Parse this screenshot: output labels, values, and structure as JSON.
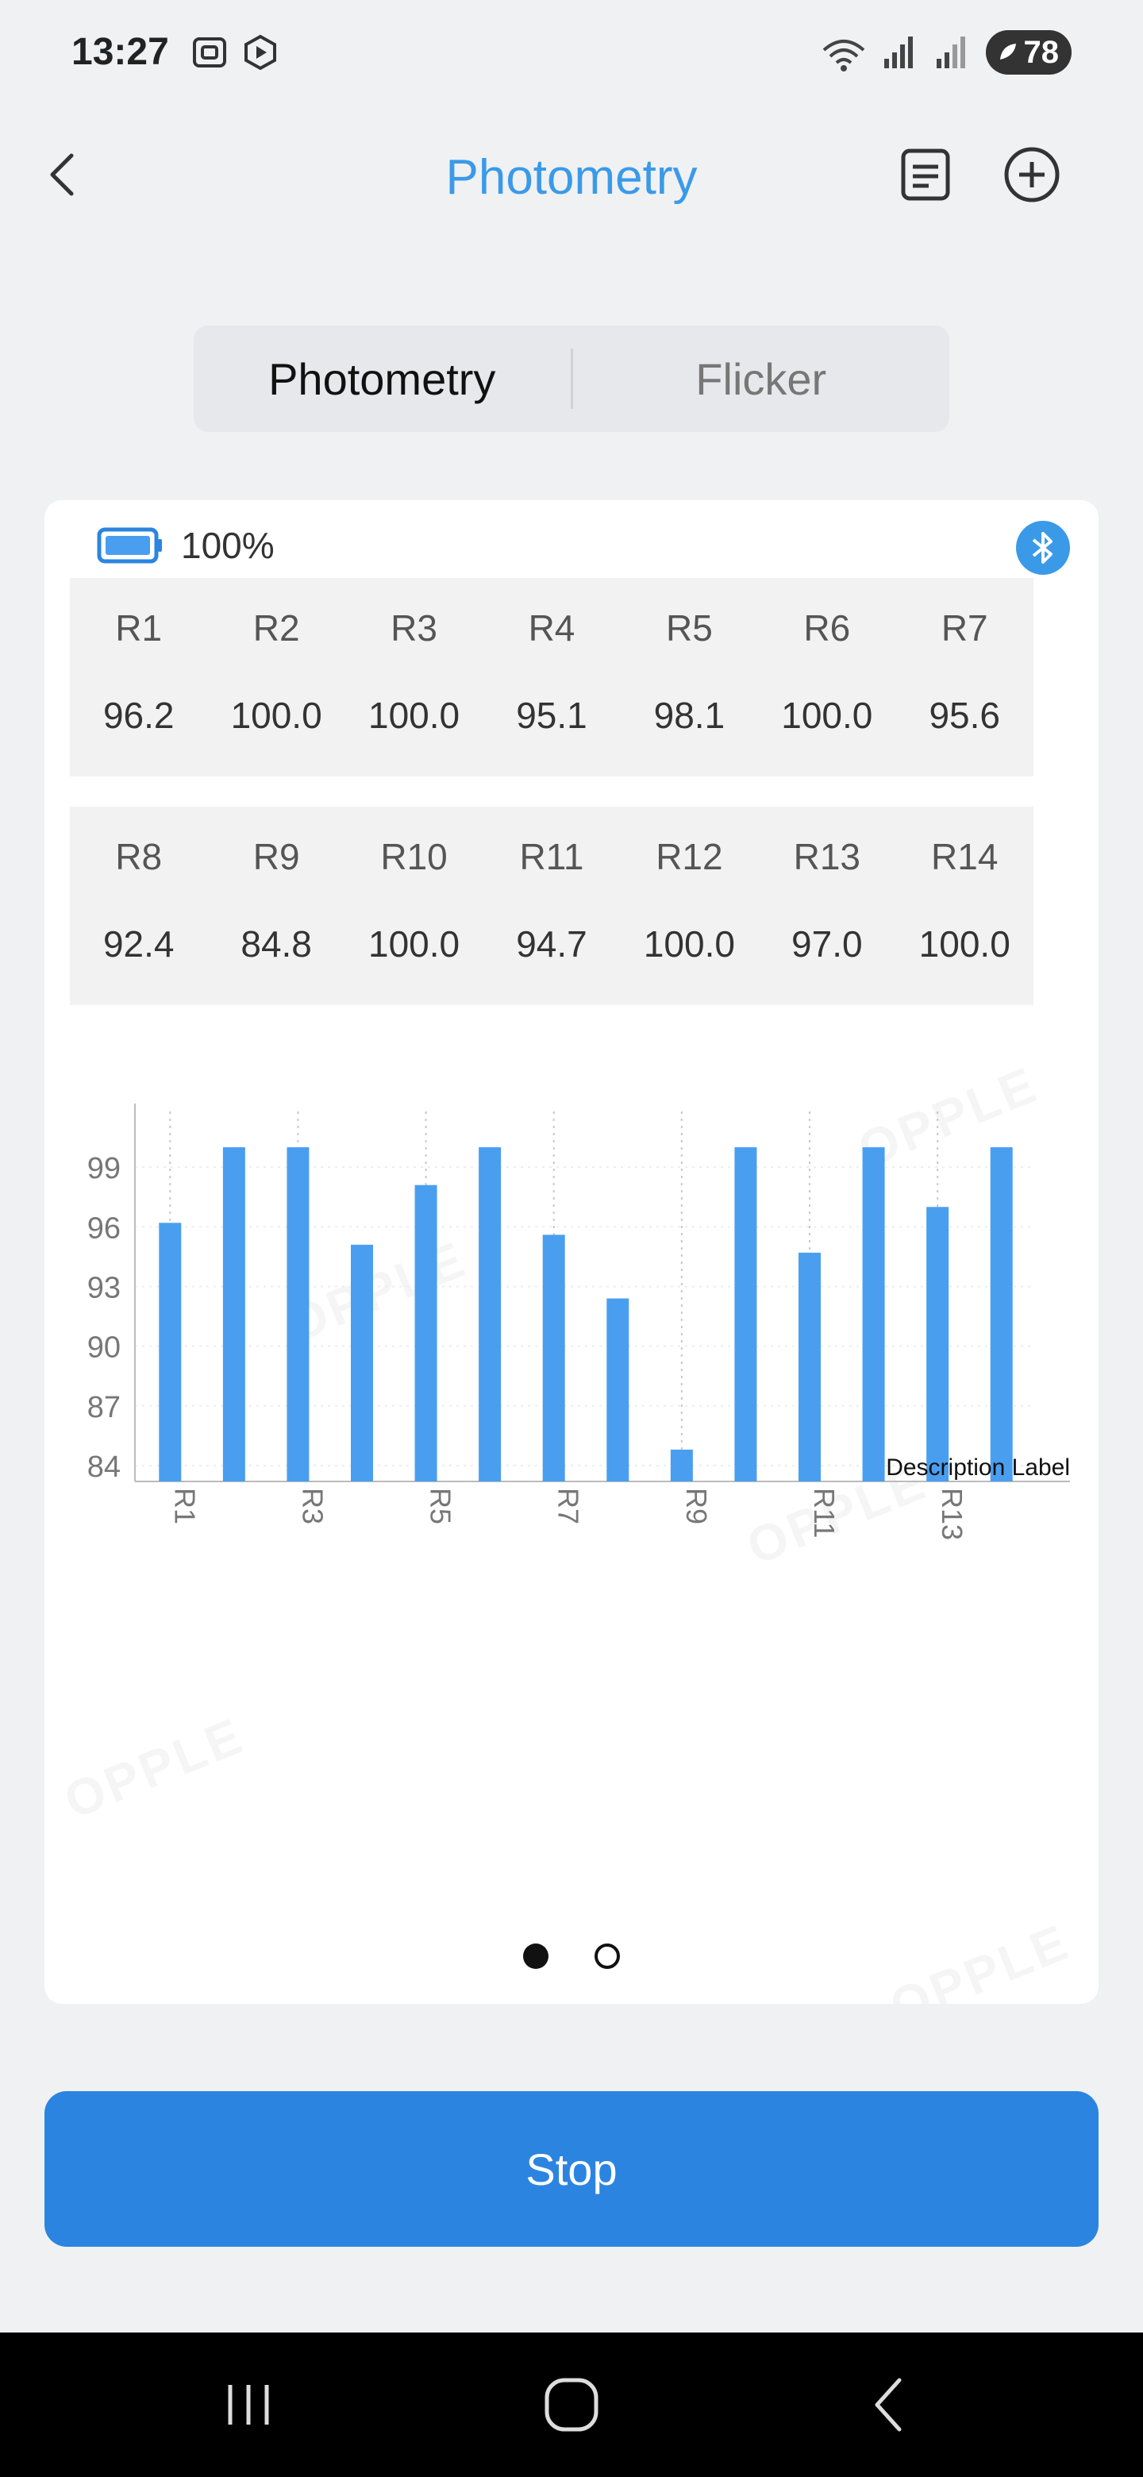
{
  "status_bar": {
    "time": "13:27",
    "battery": "78",
    "icons_left": [
      "screenshot-icon",
      "record-icon"
    ],
    "icons_right": [
      "wifi-icon",
      "signal-icon",
      "signal-icon",
      "battery-icon"
    ]
  },
  "header": {
    "title": "Photometry",
    "back_icon": "chevron-left-icon",
    "list_icon": "list-icon",
    "add_icon": "plus-circle-icon"
  },
  "tabs": [
    {
      "label": "Photometry",
      "active": true
    },
    {
      "label": "Flicker",
      "active": false
    }
  ],
  "device": {
    "battery_percent": "100%",
    "bluetooth_icon": "bluetooth-icon"
  },
  "r_rows": [
    [
      {
        "label": "R1",
        "value": "96.2"
      },
      {
        "label": "R2",
        "value": "100.0"
      },
      {
        "label": "R3",
        "value": "100.0"
      },
      {
        "label": "R4",
        "value": "95.1"
      },
      {
        "label": "R5",
        "value": "98.1"
      },
      {
        "label": "R6",
        "value": "100.0"
      },
      {
        "label": "R7",
        "value": "95.6"
      }
    ],
    [
      {
        "label": "R8",
        "value": "92.4"
      },
      {
        "label": "R9",
        "value": "84.8"
      },
      {
        "label": "R10",
        "value": "100.0"
      },
      {
        "label": "R11",
        "value": "94.7"
      },
      {
        "label": "R12",
        "value": "100.0"
      },
      {
        "label": "R13",
        "value": "97.0"
      },
      {
        "label": "R14",
        "value": "100.0"
      }
    ]
  ],
  "chart_data": {
    "type": "bar",
    "categories": [
      "R1",
      "R2",
      "R3",
      "R4",
      "R5",
      "R6",
      "R7",
      "R8",
      "R9",
      "R10",
      "R11",
      "R12",
      "R13",
      "R14"
    ],
    "values": [
      96.2,
      100.0,
      100.0,
      95.1,
      98.1,
      100.0,
      95.6,
      92.4,
      84.8,
      100.0,
      94.7,
      100.0,
      97.0,
      100.0
    ],
    "x_tick_labels": [
      "R1",
      "R3",
      "R5",
      "R7",
      "R9",
      "R11",
      "R13"
    ],
    "y_ticks": [
      84,
      87,
      90,
      93,
      96,
      99
    ],
    "ylim": [
      83.2,
      101.4
    ],
    "description": "Description Label",
    "bar_color": "#4a9ef0",
    "grid": true
  },
  "pager": {
    "pages": 2,
    "current": 0
  },
  "actions": {
    "stop_label": "Stop"
  },
  "watermark_text": "OPPLE",
  "nav": {
    "recents_icon": "recents-icon",
    "home_icon": "home-icon",
    "back_icon": "back-icon"
  }
}
